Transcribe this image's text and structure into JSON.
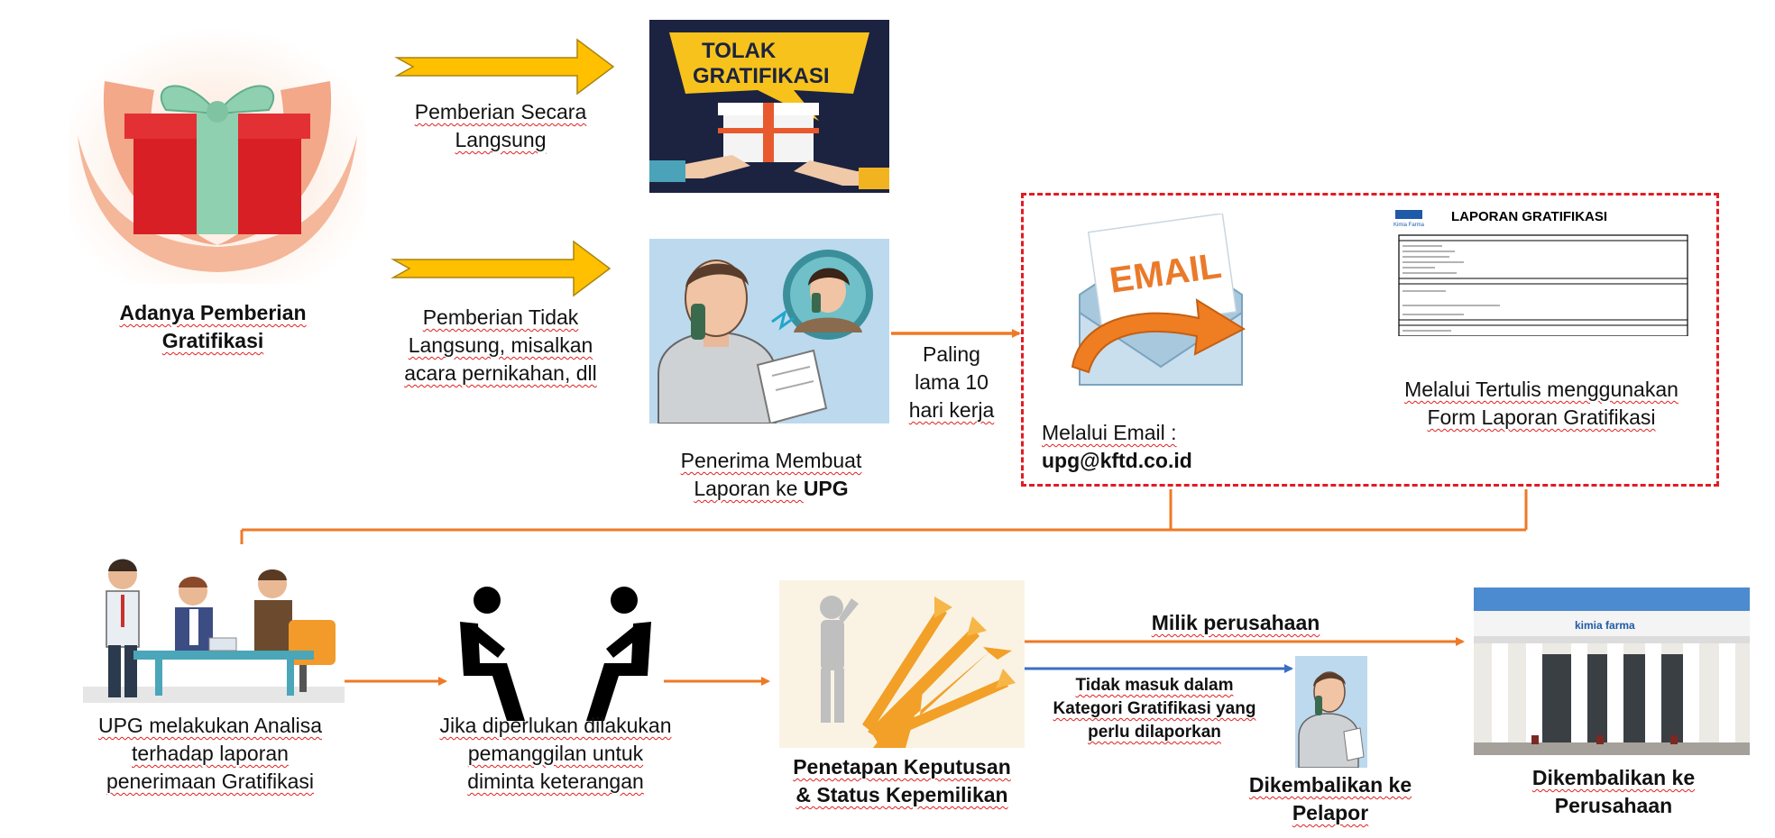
{
  "colors": {
    "flow_arrow": "#ee7a26",
    "yellow_arrow": "#ffc000",
    "blue_arrow": "#3b6fc4",
    "dash_border": "#e31b23",
    "navy": "#1c2340"
  },
  "nodes": {
    "gift": {
      "line1": "Adanya Pemberian",
      "line2": "Gratifikasi"
    },
    "direct": {
      "line1": "Pemberian Secara",
      "line2": "Langsung"
    },
    "indirect": {
      "line1": "Pemberian Tidak",
      "line2": "Langsung, misalkan",
      "line3": "acara pernikahan, dll"
    },
    "reject_poster": {
      "line1": "TOLAK",
      "line2": "GRATIFIKASI"
    },
    "recipient": {
      "line1": "Penerima Membuat",
      "line2_prefix": "Laporan ke ",
      "line2_bold": "UPG"
    },
    "deadline": {
      "line1": "Paling",
      "line2": "lama 10",
      "line3": "hari kerja"
    },
    "email": {
      "icon_text": "EMAIL",
      "line1": "Melalui Email :",
      "line2": "upg@kftd.co.id"
    },
    "form": {
      "doc_title": "LAPORAN GRATIFIKASI",
      "doc_logo": "Kimia Farma",
      "line1": "Melalui Tertulis menggunakan",
      "line2": "Form Laporan Gratifikasi"
    },
    "analysis": {
      "line1": "UPG melakukan Analisa",
      "line2": "terhadap laporan",
      "line3": "penerimaan Gratifikasi"
    },
    "summon": {
      "line1": "Jika diperlukan dilakukan",
      "line2": "pemanggilan untuk",
      "line3": "diminta keterangan"
    },
    "decision": {
      "line1": "Penetapan Keputusan",
      "line2": "& Status Kepemilikan"
    },
    "company_own": {
      "label": "Milik perusahaan"
    },
    "not_category": {
      "line1": "Tidak masuk dalam",
      "line2": "Kategori Gratifikasi yang",
      "line3": "perlu dilaporkan"
    },
    "return_reporter": {
      "line1": "Dikembalikan ke",
      "line2": "Pelapor"
    },
    "return_company": {
      "line1": "Dikembalikan ke",
      "line2": "Perusahaan",
      "sign": "kimia farma"
    }
  }
}
